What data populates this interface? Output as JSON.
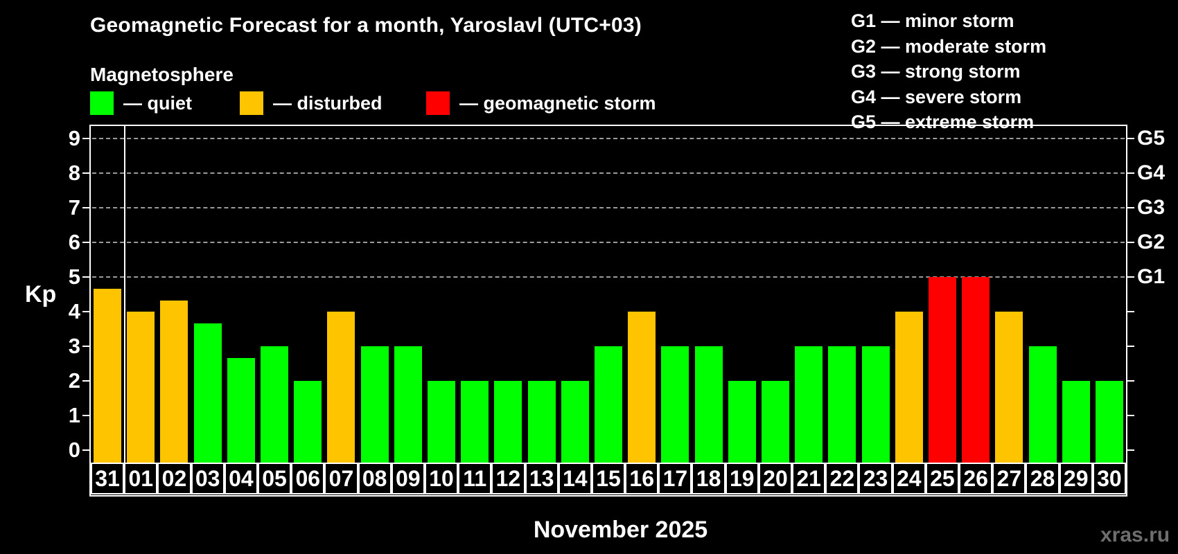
{
  "header": {
    "title": "Geomagnetic Forecast for a month, Yaroslavl (UTC+03)",
    "subtitle": "Magnetosphere"
  },
  "status_legend": [
    {
      "name": "quiet",
      "label": "— quiet",
      "color": "#00ff00"
    },
    {
      "name": "disturbed",
      "label": "— disturbed",
      "color": "#ffc400"
    },
    {
      "name": "storm",
      "label": "— geomagnetic storm",
      "color": "#ff0000"
    }
  ],
  "g_scale_legend": [
    "G1 — minor storm",
    "G2 — moderate storm",
    "G3 — strong storm",
    "G4 — severe storm",
    "G5 — extreme storm"
  ],
  "chart_data": {
    "type": "bar",
    "title": "Geomagnetic Forecast for a month, Yaroslavl (UTC+03)",
    "ylabel": "Kp",
    "xlabel": "November 2025",
    "ylim": [
      0,
      9
    ],
    "yticks": [
      0,
      1,
      2,
      3,
      4,
      5,
      6,
      7,
      8,
      9
    ],
    "gridlines_at_kp": [
      5,
      6,
      7,
      8,
      9
    ],
    "grid": "dashed horizontal at storm levels only",
    "legend_position": "top",
    "right_axis": {
      "labels": [
        "G1",
        "G2",
        "G3",
        "G4",
        "G5"
      ],
      "at_kp": [
        5,
        6,
        7,
        8,
        9
      ]
    },
    "categories": [
      "31",
      "01",
      "02",
      "03",
      "04",
      "05",
      "06",
      "07",
      "08",
      "09",
      "10",
      "11",
      "12",
      "13",
      "14",
      "15",
      "16",
      "17",
      "18",
      "19",
      "20",
      "21",
      "22",
      "23",
      "24",
      "25",
      "26",
      "27",
      "28",
      "29",
      "30"
    ],
    "values": [
      4.67,
      4,
      4.33,
      3.67,
      2.67,
      3,
      2,
      4,
      3,
      3,
      2,
      2,
      2,
      2,
      2,
      3,
      4,
      3,
      3,
      2,
      2,
      3,
      3,
      3,
      4,
      5,
      5,
      4,
      3,
      2,
      2
    ],
    "statuses": [
      "disturbed",
      "disturbed",
      "disturbed",
      "quiet",
      "quiet",
      "quiet",
      "quiet",
      "disturbed",
      "quiet",
      "quiet",
      "quiet",
      "quiet",
      "quiet",
      "quiet",
      "quiet",
      "quiet",
      "disturbed",
      "quiet",
      "quiet",
      "quiet",
      "quiet",
      "quiet",
      "quiet",
      "quiet",
      "disturbed",
      "storm",
      "storm",
      "disturbed",
      "quiet",
      "quiet",
      "quiet"
    ],
    "colors": {
      "quiet": "#00ff00",
      "disturbed": "#ffc400",
      "storm": "#ff0000"
    },
    "month_separator_after_index": 0
  },
  "footer": {
    "month_label": "November 2025",
    "watermark": "xras.ru"
  }
}
